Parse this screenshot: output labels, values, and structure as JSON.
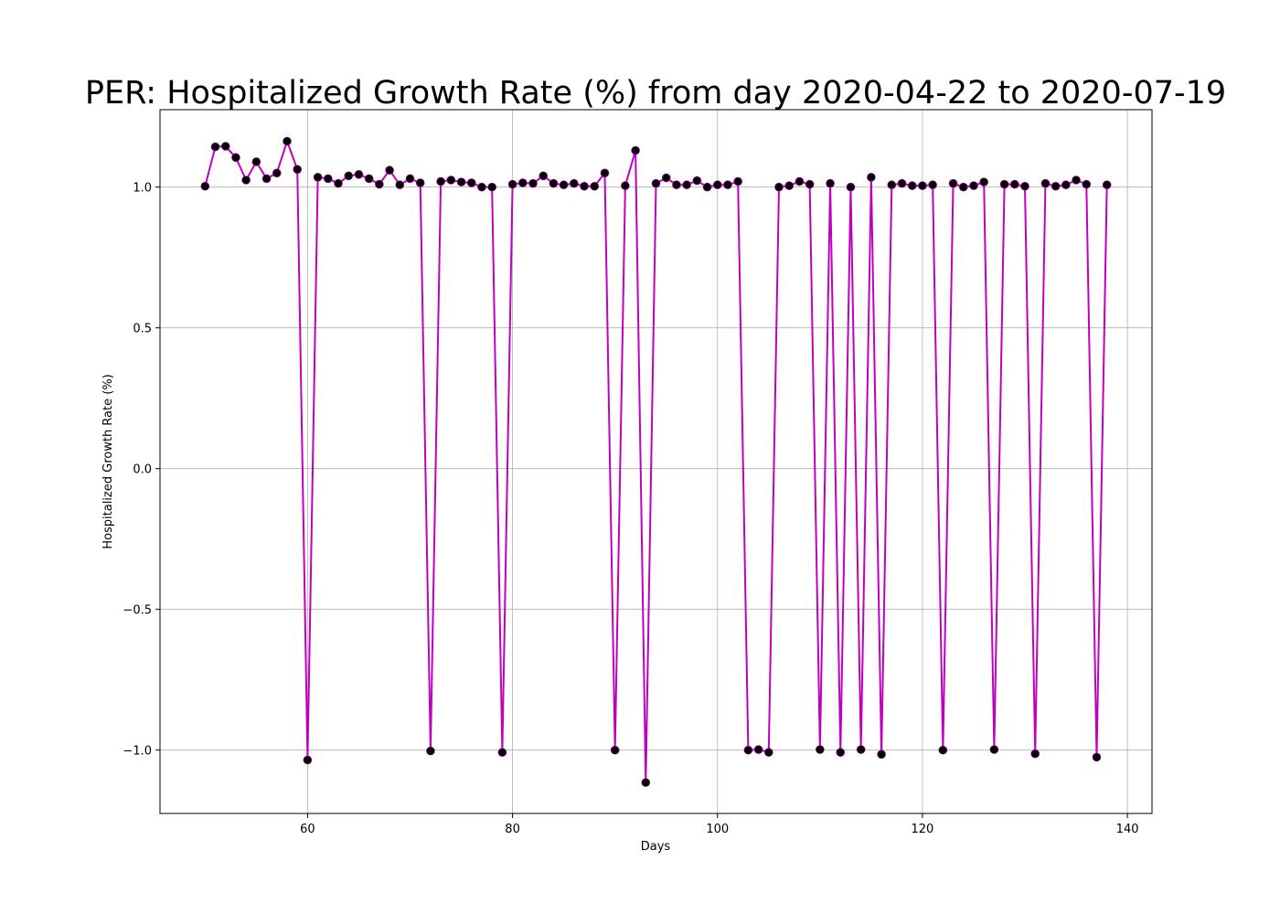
{
  "chart_data": {
    "type": "line",
    "title": "PER: Hospitalized Growth Rate (%) from day 2020-04-22 to 2020-07-19",
    "xlabel": "Days",
    "ylabel": "Hospitalized Growth Rate (%)",
    "xlim": [
      45.6,
      142.4
    ],
    "ylim": [
      -1.225,
      1.275
    ],
    "xticks": [
      60,
      80,
      100,
      120,
      140
    ],
    "xtick_labels": [
      "60",
      "80",
      "100",
      "120",
      "140"
    ],
    "yticks": [
      -1.0,
      -0.5,
      0.0,
      0.5,
      1.0
    ],
    "ytick_labels": [
      "−1.0",
      "−0.5",
      "0.0",
      "0.5",
      "1.0"
    ],
    "grid": true,
    "line_color": "#bf00bf",
    "marker_color": "#000000",
    "x": [
      50,
      51,
      52,
      53,
      54,
      55,
      56,
      57,
      58,
      59,
      60,
      61,
      62,
      63,
      64,
      65,
      66,
      67,
      68,
      69,
      70,
      71,
      72,
      73,
      74,
      75,
      76,
      77,
      78,
      79,
      80,
      81,
      82,
      83,
      84,
      85,
      86,
      87,
      88,
      89,
      90,
      91,
      92,
      93,
      94,
      95,
      96,
      97,
      98,
      99,
      100,
      101,
      102,
      103,
      104,
      105,
      106,
      107,
      108,
      109,
      110,
      111,
      112,
      113,
      114,
      115,
      116,
      117,
      118,
      119,
      120,
      121,
      122,
      123,
      124,
      125,
      126,
      127,
      128,
      129,
      130,
      131,
      132,
      133,
      134,
      135,
      136,
      137,
      138
    ],
    "y": [
      1.003,
      1.143,
      1.145,
      1.105,
      1.025,
      1.09,
      1.03,
      1.05,
      1.163,
      1.063,
      -1.035,
      1.035,
      1.03,
      1.013,
      1.04,
      1.045,
      1.03,
      1.01,
      1.06,
      1.008,
      1.03,
      1.015,
      -1.003,
      1.02,
      1.025,
      1.018,
      1.015,
      1.0,
      1.0,
      -1.008,
      1.01,
      1.015,
      1.013,
      1.04,
      1.013,
      1.008,
      1.013,
      1.003,
      1.003,
      1.05,
      -1.0,
      1.005,
      1.13,
      -1.115,
      1.013,
      1.033,
      1.008,
      1.008,
      1.023,
      1.0,
      1.008,
      1.008,
      1.02,
      -1.0,
      -0.998,
      -1.008,
      1.0,
      1.005,
      1.02,
      1.01,
      -0.998,
      1.013,
      -1.008,
      1.0,
      -0.998,
      1.035,
      -1.015,
      1.008,
      1.013,
      1.005,
      1.005,
      1.008,
      -1.0,
      1.013,
      1.0,
      1.005,
      1.018,
      -0.998,
      1.01,
      1.01,
      1.003,
      -1.013,
      1.013,
      1.003,
      1.008,
      1.025,
      1.01,
      -1.025,
      1.008
    ]
  }
}
